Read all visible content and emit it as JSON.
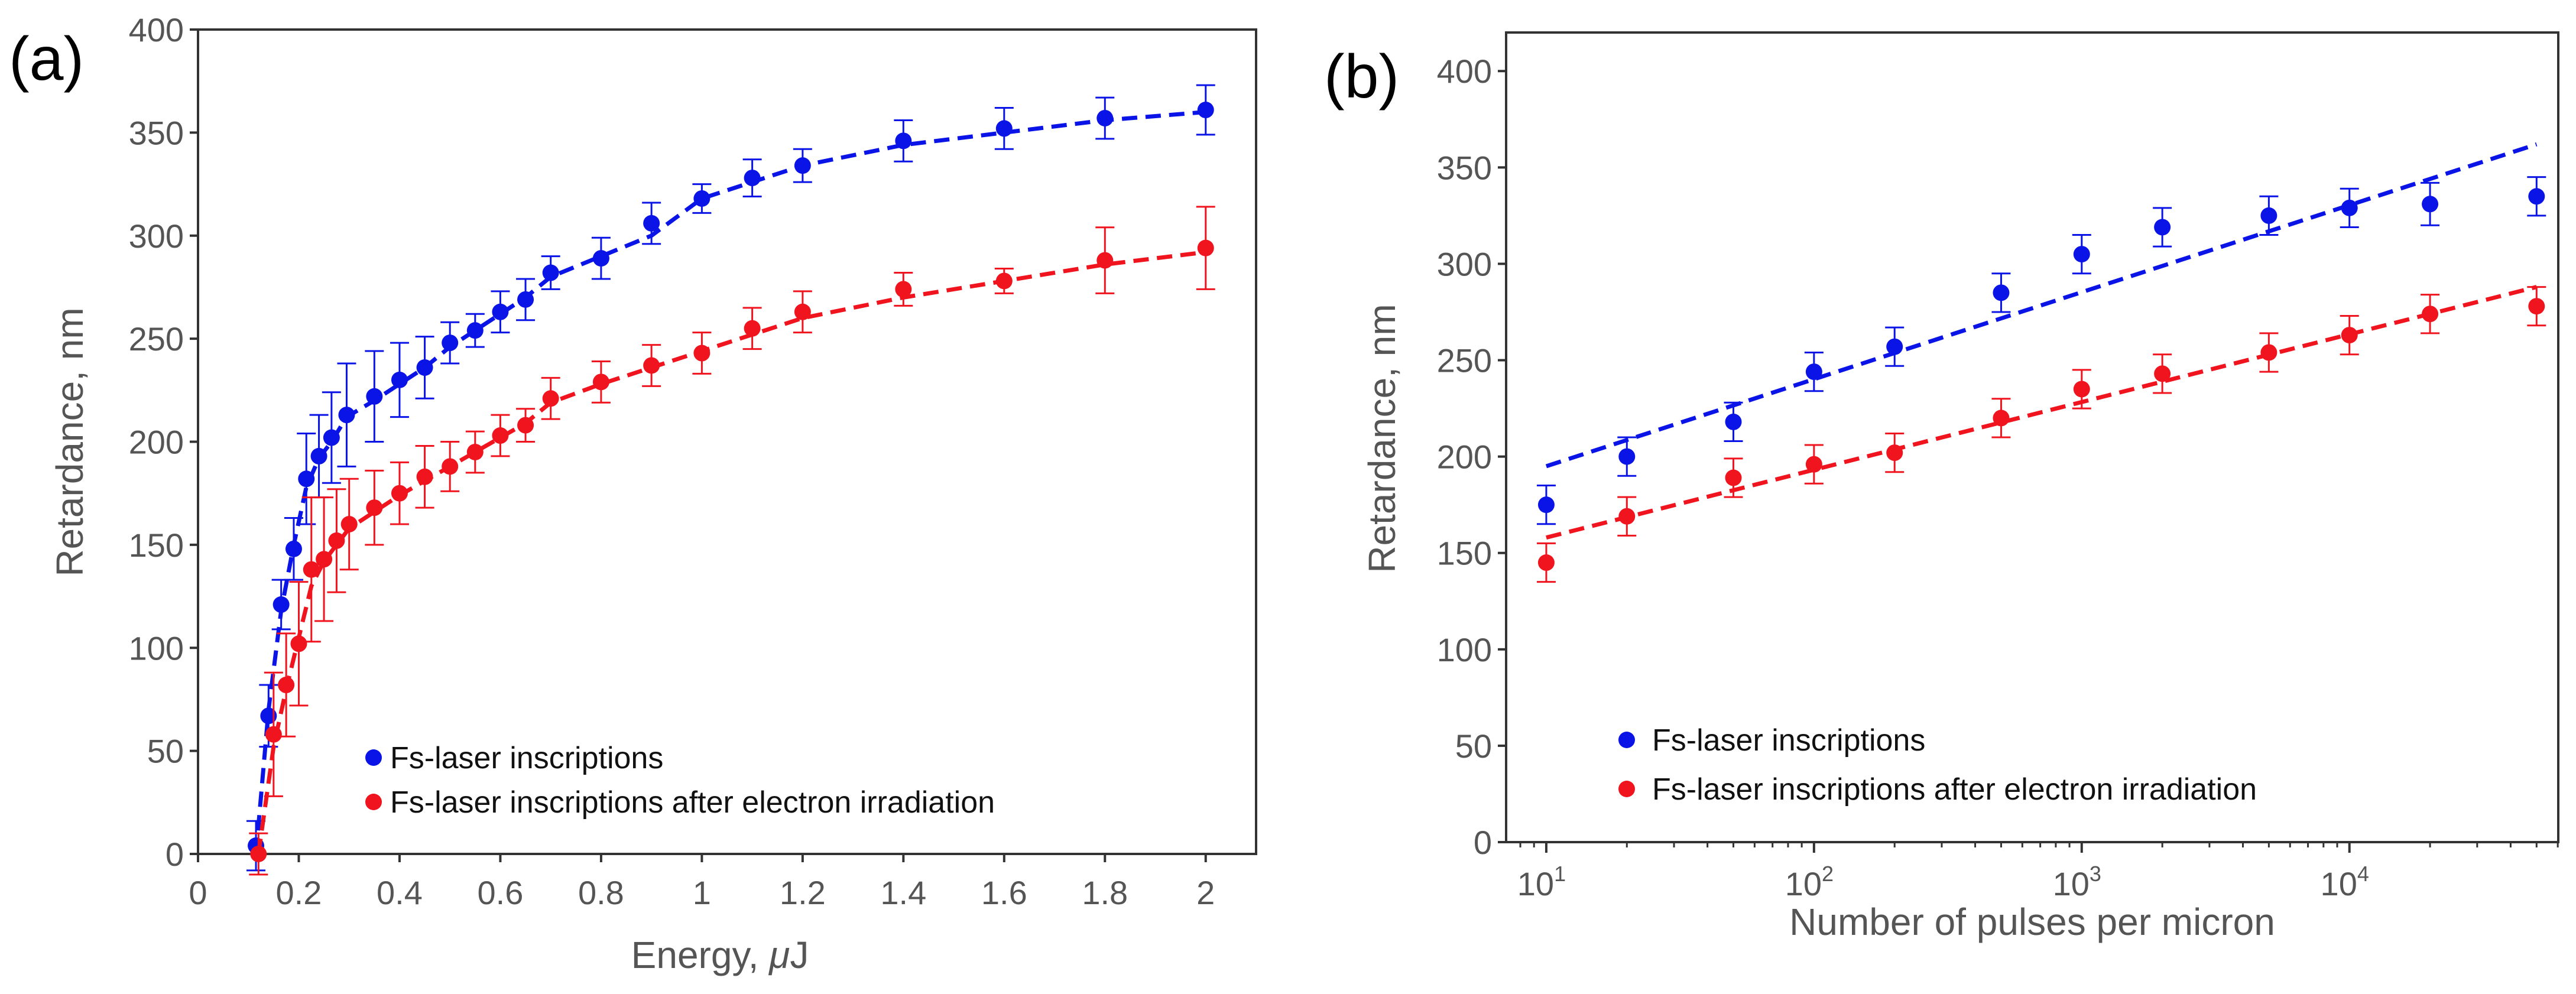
{
  "colors": {
    "blue": "#0a14e6",
    "red": "#f0141e",
    "axis": "#333333",
    "text": "#555555"
  },
  "chart_data": [
    {
      "panel": "(a)",
      "type": "scatter",
      "xlabel_prefix": "Energy, ",
      "xlabel_symbol": "μ",
      "xlabel_suffix": "J",
      "ylabel": "Retardance, nm",
      "xlim": [
        0,
        2.1
      ],
      "ylim": [
        0,
        400
      ],
      "xscale": "linear",
      "xticks": [
        0,
        0.2,
        0.4,
        0.6,
        0.8,
        1,
        1.2,
        1.4,
        1.6,
        1.8,
        2
      ],
      "xtick_labels": [
        "0",
        "0.2",
        "0.4",
        "0.6",
        "0.8",
        "1",
        "1.2",
        "1.4",
        "1.6",
        "1.8",
        "2"
      ],
      "yticks": [
        0,
        50,
        100,
        150,
        200,
        250,
        300,
        350,
        400
      ],
      "ytick_labels": [
        "0",
        "50",
        "100",
        "150",
        "200",
        "250",
        "300",
        "350",
        "400"
      ],
      "legend": "bottom-center",
      "series": [
        {
          "name": "Fs-laser inscriptions",
          "color": "#0a14e6",
          "x": [
            0.115,
            0.14,
            0.165,
            0.19,
            0.215,
            0.24,
            0.265,
            0.295,
            0.35,
            0.4,
            0.45,
            0.5,
            0.55,
            0.6,
            0.65,
            0.7,
            0.8,
            0.9,
            1.0,
            1.1,
            1.2,
            1.4,
            1.6,
            1.8,
            2.0
          ],
          "y": [
            4,
            67,
            121,
            148,
            182,
            193,
            202,
            213,
            222,
            230,
            236,
            248,
            254,
            263,
            269,
            282,
            289,
            306,
            318,
            328,
            334,
            346,
            352,
            357,
            361
          ],
          "err": [
            12,
            15,
            12,
            15,
            22,
            20,
            22,
            25,
            22,
            18,
            15,
            10,
            8,
            10,
            10,
            8,
            10,
            10,
            7,
            9,
            8,
            10,
            10,
            10,
            12
          ],
          "fit": {
            "x": [
              0.115,
              0.14,
              0.165,
              0.19,
              0.215,
              0.24,
              0.265,
              0.295,
              0.35,
              0.4,
              0.45,
              0.5,
              0.55,
              0.6,
              0.65,
              0.7,
              0.8,
              0.9,
              1.0,
              1.1,
              1.2,
              1.4,
              1.6,
              1.8,
              2.0
            ],
            "y": [
              0,
              70,
              118,
              150,
              178,
              192,
              200,
              212,
              220,
              228,
              236,
              246,
              254,
              262,
              270,
              280,
              290,
              300,
              318,
              326,
              334,
              344,
              350,
              356,
              360
            ]
          }
        },
        {
          "name": "Fs-laser inscriptions after electron irradiation",
          "color": "#f0141e",
          "x": [
            0.12,
            0.15,
            0.175,
            0.2,
            0.225,
            0.25,
            0.275,
            0.3,
            0.35,
            0.4,
            0.45,
            0.5,
            0.55,
            0.6,
            0.65,
            0.7,
            0.8,
            0.9,
            1.0,
            1.1,
            1.2,
            1.4,
            1.6,
            1.8,
            2.0
          ],
          "y": [
            0,
            58,
            82,
            102,
            138,
            143,
            152,
            160,
            168,
            175,
            183,
            188,
            195,
            203,
            208,
            221,
            229,
            237,
            243,
            255,
            263,
            274,
            278,
            288,
            294
          ],
          "err": [
            10,
            30,
            25,
            30,
            35,
            30,
            25,
            22,
            18,
            15,
            15,
            12,
            10,
            10,
            8,
            10,
            10,
            10,
            10,
            10,
            10,
            8,
            6,
            16,
            20
          ],
          "fit": {
            "x": [
              0.12,
              0.15,
              0.175,
              0.2,
              0.225,
              0.25,
              0.275,
              0.3,
              0.35,
              0.4,
              0.45,
              0.5,
              0.55,
              0.6,
              0.65,
              0.7,
              0.8,
              0.9,
              1.0,
              1.1,
              1.2,
              1.4,
              1.6,
              1.8,
              2.0
            ],
            "y": [
              0,
              52,
              80,
              105,
              130,
              142,
              150,
              158,
              166,
              174,
              181,
              188,
              195,
              202,
              209,
              219,
              228,
              236,
              244,
              252,
              260,
              270,
              278,
              286,
              292
            ]
          }
        }
      ]
    },
    {
      "panel": "(b)",
      "type": "scatter",
      "xlabel": "Number of pulses per micron",
      "ylabel": "Retardance, nm",
      "xlim": [
        0.85,
        4.78
      ],
      "ylim": [
        0,
        420
      ],
      "xscale": "log10",
      "xticks": [
        1,
        2,
        3,
        4
      ],
      "xtick_labels": [
        {
          "base": "10",
          "exp": "1"
        },
        {
          "base": "10",
          "exp": "2"
        },
        {
          "base": "10",
          "exp": "3"
        },
        {
          "base": "10",
          "exp": "4"
        }
      ],
      "yticks": [
        0,
        50,
        100,
        150,
        200,
        250,
        300,
        350,
        400
      ],
      "ytick_labels": [
        "0",
        "50",
        "100",
        "150",
        "200",
        "250",
        "300",
        "350",
        "400"
      ],
      "legend": "bottom-left",
      "series": [
        {
          "name": "Fs-laser inscriptions",
          "color": "#0a14e6",
          "x": [
            10,
            20,
            50,
            100,
            200,
            500,
            1000,
            2000,
            5000,
            10000,
            20000,
            50000
          ],
          "y": [
            175,
            200,
            218,
            244,
            257,
            285,
            305,
            319,
            325,
            329,
            331,
            335
          ],
          "err": [
            10,
            10,
            10,
            10,
            10,
            10,
            10,
            10,
            10,
            10,
            11,
            10
          ],
          "fit": {
            "x": [
              10,
              50000
            ],
            "y": [
              195,
              362
            ]
          }
        },
        {
          "name": "Fs-laser inscriptions after electron irradiation",
          "color": "#f0141e",
          "x": [
            10,
            20,
            50,
            100,
            200,
            500,
            1000,
            2000,
            5000,
            10000,
            20000,
            50000
          ],
          "y": [
            145,
            169,
            189,
            196,
            202,
            220,
            235,
            243,
            254,
            263,
            274,
            278
          ],
          "err": [
            10,
            10,
            10,
            10,
            10,
            10,
            10,
            10,
            10,
            10,
            10,
            10
          ],
          "fit": {
            "x": [
              10,
              50000
            ],
            "y": [
              158,
              288
            ]
          }
        }
      ]
    }
  ]
}
